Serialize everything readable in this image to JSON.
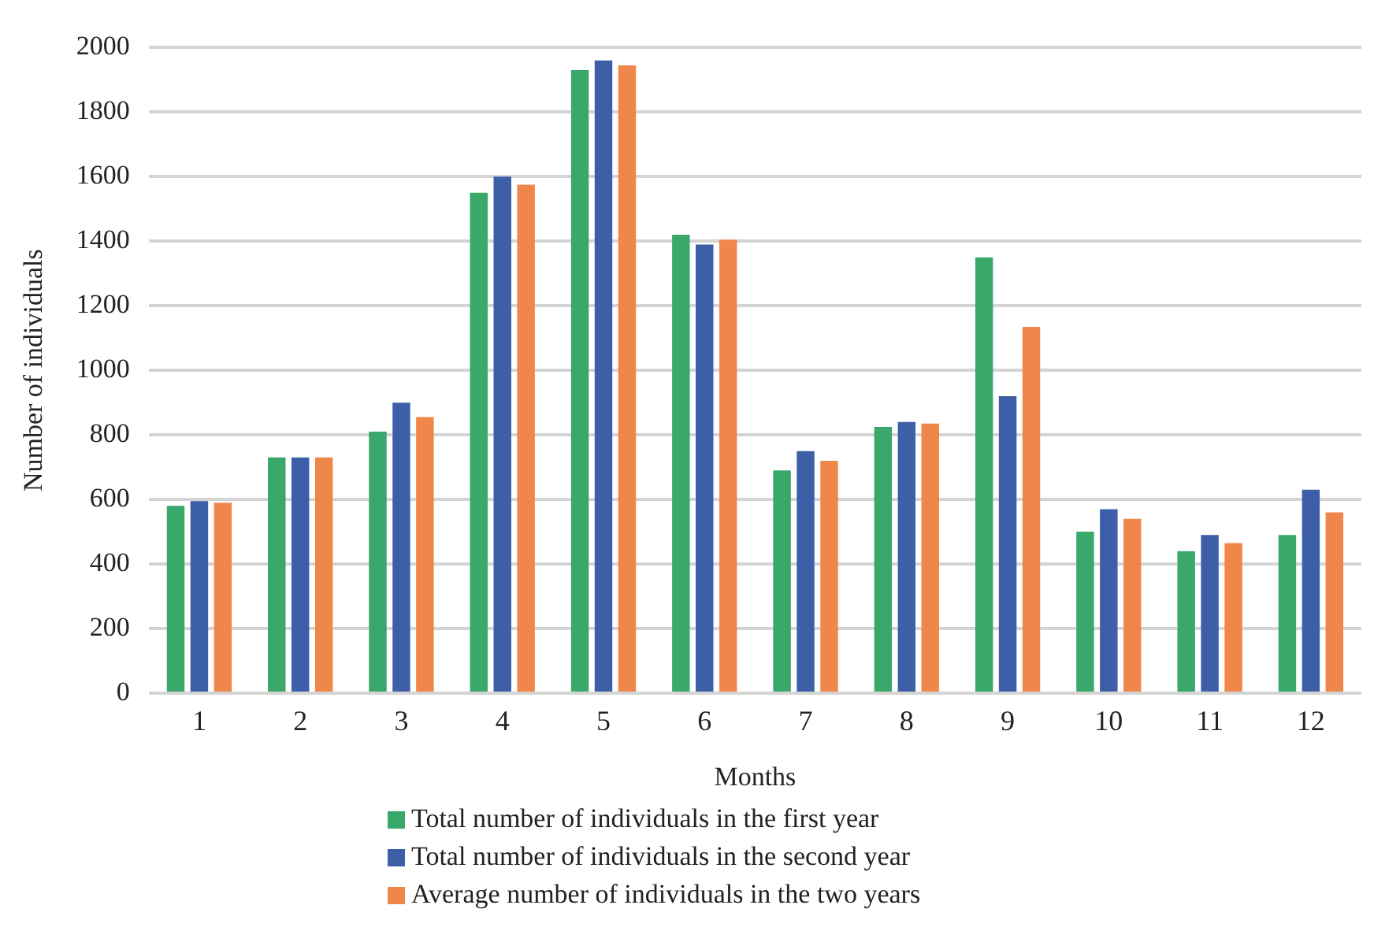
{
  "chart_data": {
    "type": "bar",
    "xlabel": "Months",
    "ylabel": "Number of individuals",
    "categories": [
      "1",
      "2",
      "3",
      "4",
      "5",
      "6",
      "7",
      "8",
      "9",
      "10",
      "11",
      "12"
    ],
    "series": [
      {
        "name": "Total number of individuals in the first year",
        "color": "#3aa86b",
        "values": [
          580,
          730,
          810,
          1550,
          1930,
          1420,
          690,
          825,
          1350,
          500,
          440,
          490
        ]
      },
      {
        "name": "Total number of individuals in the second year",
        "color": "#3d5fa8",
        "values": [
          595,
          730,
          900,
          1600,
          1960,
          1390,
          750,
          840,
          920,
          570,
          490,
          630
        ]
      },
      {
        "name": "Average number of individuals in the two years",
        "color": "#f0874a",
        "values": [
          590,
          730,
          855,
          1575,
          1945,
          1405,
          720,
          835,
          1135,
          540,
          465,
          560
        ]
      }
    ],
    "ylim": [
      0,
      2000
    ],
    "yticks": [
      0,
      200,
      400,
      600,
      800,
      1000,
      1200,
      1400,
      1600,
      1800,
      2000
    ],
    "grid": "y",
    "legend": "bottom"
  }
}
